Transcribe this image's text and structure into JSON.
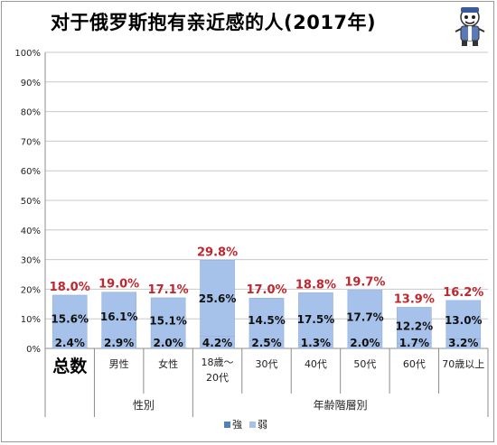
{
  "chart_data": {
    "type": "bar",
    "stacked": true,
    "title": "对于俄罗斯抱有亲近感的人(2017年)",
    "y_ticks": [
      "0%",
      "10%",
      "20%",
      "30%",
      "40%",
      "50%",
      "60%",
      "70%",
      "80%",
      "90%",
      "100%"
    ],
    "ylim": [
      0,
      100
    ],
    "grid": true,
    "legend_position": "bottom",
    "categories": [
      "总数",
      "男性",
      "女性",
      "18歳～20代",
      "30代",
      "40代",
      "50代",
      "60代",
      "70歳以上"
    ],
    "category_label_lines": [
      [
        "总数"
      ],
      [
        "男性"
      ],
      [
        "女性"
      ],
      [
        "18歳～",
        "20代"
      ],
      [
        "30代"
      ],
      [
        "40代"
      ],
      [
        "50代"
      ],
      [
        "60代"
      ],
      [
        "70歳以上"
      ]
    ],
    "groups": [
      {
        "label": "",
        "start": 0,
        "end": 0
      },
      {
        "label": "性別",
        "start": 1,
        "end": 2
      },
      {
        "label": "年齢階層別",
        "start": 3,
        "end": 8
      }
    ],
    "series": [
      {
        "name": "強",
        "color": "#4f81bd",
        "values": [
          2.4,
          2.9,
          2.0,
          4.2,
          2.5,
          1.3,
          2.0,
          1.7,
          3.2
        ],
        "labels": [
          "2.4%",
          "2.9%",
          "2.0%",
          "4.2%",
          "2.5%",
          "1.3%",
          "2.0%",
          "1.7%",
          "3.2%"
        ]
      },
      {
        "name": "弱",
        "color": "#a6c2ea",
        "values": [
          15.6,
          16.1,
          15.1,
          25.6,
          14.5,
          17.5,
          17.7,
          12.2,
          13.0
        ],
        "labels": [
          "15.6%",
          "16.1%",
          "15.1%",
          "25.6%",
          "14.5%",
          "17.5%",
          "17.7%",
          "12.2%",
          "13.0%"
        ]
      }
    ],
    "totals": [
      18.0,
      19.0,
      17.1,
      29.8,
      17.0,
      18.8,
      19.7,
      13.9,
      16.2
    ],
    "total_labels": [
      "18.0%",
      "19.0%",
      "17.1%",
      "29.8%",
      "17.0%",
      "18.8%",
      "19.7%",
      "13.9%",
      "16.2%"
    ],
    "colors": {
      "bar": "#a6c2ea",
      "total_label": "#c0262d",
      "grid": "#c8c8c8",
      "axis": "#8c8c8c",
      "title": "#000000"
    }
  },
  "logo_icon": "mascot-logo-icon"
}
